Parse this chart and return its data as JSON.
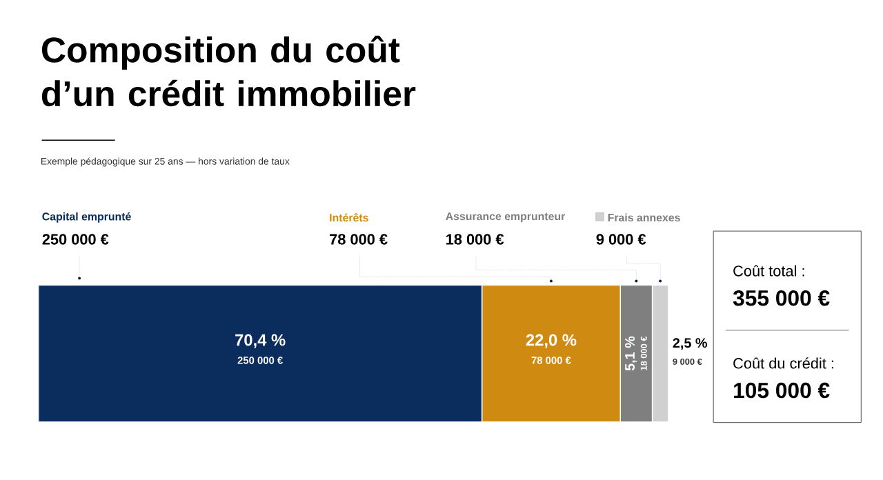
{
  "chart_data": {
    "type": "bar",
    "orientation": "horizontal",
    "stacked": true,
    "title": "Composition du coût d’un crédit immobilier",
    "subtitle": "Exemple pédagogique sur 25 ans — hors variation de taux",
    "categories": [
      null
    ],
    "series": [
      {
        "name": "Capital emprunté",
        "color": "#0b2d5e",
        "values": [
          250000
        ],
        "value_labels": [
          "250 000 €"
        ]
      },
      {
        "name": "Intérêts",
        "color": "#cf8a12",
        "values": [
          78000
        ],
        "value_labels": [
          "78 000 €"
        ]
      },
      {
        "name": "Assurance emprunteur",
        "color": "#7f7f7f",
        "values": [
          18000
        ],
        "value_labels": [
          "18 000 €"
        ]
      },
      {
        "name": "Frais annexes",
        "color": "#d0d0d0",
        "values": [
          9000
        ],
        "value_labels": [
          "9 000 €"
        ]
      }
    ],
    "annotations": [
      "250 000 €",
      "78 000 €",
      "18 000 €",
      "9 000 €",
      "70,4 %",
      "22,0 %",
      "5,1 %",
      "2,5 %",
      "Coût total :",
      "355 000 €",
      "Coût du crédit :",
      "105 000 €"
    ]
  }
}
